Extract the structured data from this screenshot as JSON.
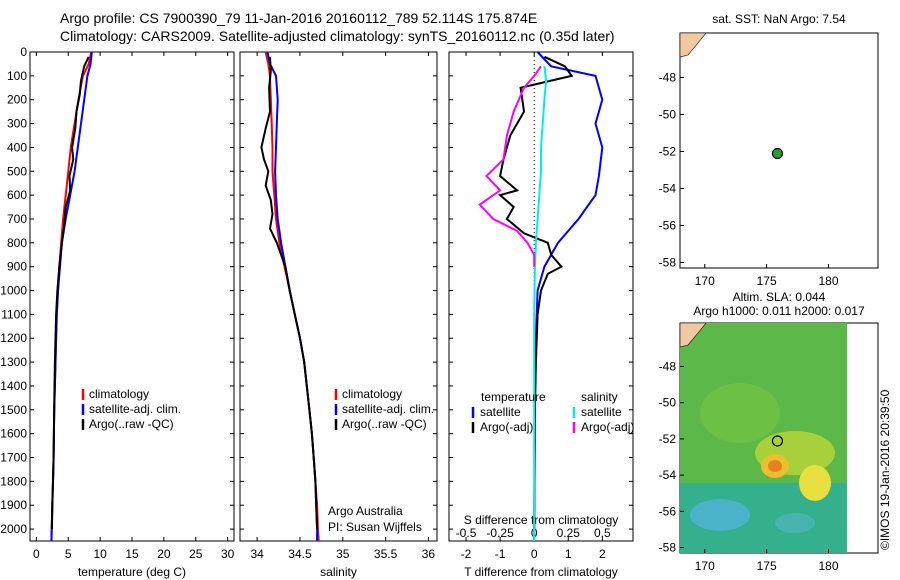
{
  "titles": {
    "line1": "Argo profile: CS 7900390_79 11-Jan-2016 20160112_789 52.114S 175.874E",
    "line2": "Climatology: CARS2009. Satellite-adjusted climatology: synTS_20160112.nc (0.35d later)"
  },
  "side_text": "©IMOS 19-Jan-2016 20:39:50",
  "chart_data": [
    {
      "type": "line",
      "panel": "temperature",
      "xlabel": "temperature (deg C)",
      "xlim": [
        -1,
        31
      ],
      "xticks": [
        0,
        5,
        10,
        15,
        20,
        25,
        30
      ],
      "ylim": [
        2050,
        0
      ],
      "yticks": [
        0,
        100,
        200,
        300,
        400,
        500,
        600,
        700,
        800,
        900,
        1000,
        1100,
        1200,
        1300,
        1400,
        1500,
        1600,
        1700,
        1800,
        1900,
        2000
      ],
      "legend": [
        "climatology",
        "satellite-adj. clim.",
        "Argo(..raw -QC)"
      ],
      "series": [
        {
          "name": "climatology",
          "color": "#ff0000",
          "points": [
            [
              8.6,
              0
            ],
            [
              8.2,
              50
            ],
            [
              7.3,
              100
            ],
            [
              6.6,
              200
            ],
            [
              6.0,
              300
            ],
            [
              5.4,
              400
            ],
            [
              5.0,
              500
            ],
            [
              4.6,
              600
            ],
            [
              4.2,
              700
            ],
            [
              3.9,
              800
            ],
            [
              3.6,
              900
            ],
            [
              3.4,
              1000
            ],
            [
              3.2,
              1100
            ],
            [
              3.1,
              1200
            ],
            [
              3.0,
              1300
            ],
            [
              2.9,
              1400
            ],
            [
              2.8,
              1500
            ],
            [
              2.75,
              1600
            ],
            [
              2.7,
              1700
            ],
            [
              2.6,
              1800
            ],
            [
              2.5,
              1900
            ],
            [
              2.4,
              2000
            ],
            [
              2.35,
              2050
            ]
          ]
        },
        {
          "name": "satellite-adj. clim.",
          "color": "#0000ff",
          "points": [
            [
              8.7,
              0
            ],
            [
              8.5,
              50
            ],
            [
              8.0,
              100
            ],
            [
              7.5,
              200
            ],
            [
              7.0,
              300
            ],
            [
              6.5,
              400
            ],
            [
              6.0,
              500
            ],
            [
              5.3,
              600
            ],
            [
              4.6,
              700
            ],
            [
              4.0,
              800
            ],
            [
              3.7,
              900
            ],
            [
              3.4,
              1000
            ],
            [
              3.2,
              1100
            ],
            [
              3.1,
              1200
            ],
            [
              3.0,
              1300
            ],
            [
              2.9,
              1400
            ],
            [
              2.8,
              1500
            ],
            [
              2.75,
              1600
            ],
            [
              2.7,
              1700
            ],
            [
              2.6,
              1800
            ],
            [
              2.5,
              1900
            ],
            [
              2.4,
              2000
            ],
            [
              2.35,
              2050
            ]
          ]
        },
        {
          "name": "Argo(..raw -QC)",
          "color": "#000000",
          "points": [
            [
              8.2,
              20
            ],
            [
              7.5,
              60
            ],
            [
              7.0,
              120
            ],
            [
              6.8,
              180
            ],
            [
              6.3,
              250
            ],
            [
              6.1,
              320
            ],
            [
              5.6,
              400
            ],
            [
              5.8,
              450
            ],
            [
              5.2,
              520
            ],
            [
              5.3,
              580
            ],
            [
              4.6,
              650
            ],
            [
              4.4,
              720
            ],
            [
              4.0,
              800
            ],
            [
              3.6,
              900
            ],
            [
              3.3,
              1000
            ],
            [
              3.1,
              1100
            ],
            [
              3.0,
              1200
            ],
            [
              2.9,
              1300
            ],
            [
              2.85,
              1400
            ],
            [
              2.8,
              1500
            ],
            [
              2.75,
              1600
            ],
            [
              2.7,
              1700
            ],
            [
              2.6,
              1800
            ],
            [
              2.5,
              1900
            ],
            [
              2.45,
              2000
            ]
          ]
        }
      ]
    },
    {
      "type": "line",
      "panel": "salinity",
      "xlabel": "salinity",
      "xlim": [
        33.8,
        36.1
      ],
      "xticks": [
        34,
        34.5,
        35,
        35.5,
        36
      ],
      "ylim": [
        2050,
        0
      ],
      "legend": [
        "climatology",
        "satellite-adj. clim.",
        "Argo(..raw -QC)"
      ],
      "annotation": [
        "Argo Australia",
        "PI: Susan Wijffels"
      ],
      "series": [
        {
          "name": "climatology",
          "color": "#ff0000",
          "points": [
            [
              34.1,
              0
            ],
            [
              34.13,
              50
            ],
            [
              34.15,
              100
            ],
            [
              34.16,
              200
            ],
            [
              34.17,
              300
            ],
            [
              34.18,
              400
            ],
            [
              34.18,
              500
            ],
            [
              34.2,
              600
            ],
            [
              34.22,
              700
            ],
            [
              34.26,
              800
            ],
            [
              34.32,
              900
            ],
            [
              34.38,
              1000
            ],
            [
              34.44,
              1100
            ],
            [
              34.5,
              1200
            ],
            [
              34.55,
              1300
            ],
            [
              34.58,
              1400
            ],
            [
              34.61,
              1500
            ],
            [
              34.64,
              1600
            ],
            [
              34.66,
              1700
            ],
            [
              34.68,
              1800
            ],
            [
              34.7,
              1900
            ],
            [
              34.71,
              2000
            ],
            [
              34.72,
              2050
            ]
          ]
        },
        {
          "name": "satellite-adj. clim.",
          "color": "#0000ff",
          "points": [
            [
              34.12,
              0
            ],
            [
              34.15,
              50
            ],
            [
              34.22,
              100
            ],
            [
              34.24,
              200
            ],
            [
              34.23,
              300
            ],
            [
              34.22,
              400
            ],
            [
              34.21,
              500
            ],
            [
              34.22,
              600
            ],
            [
              34.24,
              700
            ],
            [
              34.28,
              800
            ],
            [
              34.33,
              900
            ],
            [
              34.38,
              1000
            ],
            [
              34.44,
              1100
            ],
            [
              34.5,
              1200
            ],
            [
              34.55,
              1300
            ],
            [
              34.58,
              1400
            ],
            [
              34.61,
              1500
            ],
            [
              34.64,
              1600
            ],
            [
              34.66,
              1700
            ],
            [
              34.68,
              1800
            ],
            [
              34.69,
              1900
            ],
            [
              34.7,
              2000
            ],
            [
              34.7,
              2050
            ]
          ]
        },
        {
          "name": "Argo(..raw -QC)",
          "color": "#000000",
          "points": [
            [
              34.15,
              20
            ],
            [
              34.16,
              80
            ],
            [
              34.14,
              150
            ],
            [
              34.15,
              250
            ],
            [
              34.1,
              320
            ],
            [
              34.05,
              400
            ],
            [
              34.08,
              450
            ],
            [
              34.13,
              500
            ],
            [
              34.1,
              560
            ],
            [
              34.16,
              620
            ],
            [
              34.18,
              680
            ],
            [
              34.15,
              740
            ],
            [
              34.23,
              800
            ],
            [
              34.3,
              870
            ],
            [
              34.33,
              900
            ],
            [
              34.38,
              1000
            ],
            [
              34.44,
              1100
            ],
            [
              34.5,
              1200
            ],
            [
              34.55,
              1300
            ],
            [
              34.58,
              1400
            ],
            [
              34.61,
              1500
            ],
            [
              34.64,
              1600
            ],
            [
              34.66,
              1700
            ],
            [
              34.68,
              1800
            ],
            [
              34.69,
              1900
            ],
            [
              34.7,
              2000
            ]
          ]
        }
      ]
    },
    {
      "type": "line",
      "panel": "difference",
      "xlabel": "T difference from climatology",
      "xlabel_top": "S difference from climatology",
      "xlim": [
        -2.5,
        2.9
      ],
      "xticks": [
        -2,
        -1,
        0,
        1,
        2
      ],
      "s_ticks": [
        -0.5,
        -0.25,
        0,
        0.25,
        0.5
      ],
      "s_tick_labels": [
        "-0.5",
        "-0.25",
        "0",
        "0.25",
        "0.5"
      ],
      "ylim": [
        2050,
        0
      ],
      "legend_headers": [
        "temperature",
        "salinity"
      ],
      "legend": [
        "satellite",
        "Argo(-adj)",
        "satellite",
        "Argo(-adj)"
      ],
      "series": [
        {
          "name": "satellite",
          "group": "temperature",
          "color": "#0000ff",
          "points": [
            [
              0.1,
              0
            ],
            [
              0.5,
              60
            ],
            [
              1.8,
              100
            ],
            [
              2.0,
              200
            ],
            [
              1.8,
              300
            ],
            [
              2.0,
              400
            ],
            [
              1.9,
              520
            ],
            [
              1.8,
              600
            ],
            [
              1.3,
              700
            ],
            [
              0.7,
              800
            ],
            [
              0.3,
              900
            ],
            [
              0.1,
              1000
            ],
            [
              0.05,
              1200
            ],
            [
              0.02,
              1500
            ],
            [
              0.0,
              2050
            ]
          ]
        },
        {
          "name": "Argo(-adj)",
          "group": "temperature",
          "color": "#000000",
          "points": [
            [
              0.3,
              20
            ],
            [
              0.9,
              60
            ],
            [
              1.1,
              100
            ],
            [
              0.5,
              120
            ],
            [
              -0.4,
              150
            ],
            [
              -0.3,
              250
            ],
            [
              -0.7,
              350
            ],
            [
              -0.9,
              450
            ],
            [
              -1.0,
              520
            ],
            [
              -0.5,
              580
            ],
            [
              -1.0,
              600
            ],
            [
              -0.6,
              650
            ],
            [
              -0.8,
              700
            ],
            [
              -0.3,
              760
            ],
            [
              0.4,
              800
            ],
            [
              0.5,
              850
            ],
            [
              0.8,
              900
            ],
            [
              0.4,
              930
            ],
            [
              0.2,
              1000
            ],
            [
              0.1,
              1100
            ],
            [
              0.05,
              1300
            ],
            [
              0.02,
              1500
            ],
            [
              0.0,
              2000
            ]
          ]
        },
        {
          "name": "satellite",
          "group": "salinity",
          "color": "#00eeee",
          "points": [
            [
              0.3,
              60
            ],
            [
              0.35,
              120
            ],
            [
              0.3,
              200
            ],
            [
              0.25,
              300
            ],
            [
              0.2,
              400
            ],
            [
              0.2,
              500
            ],
            [
              0.15,
              600
            ],
            [
              0.1,
              700
            ],
            [
              0.05,
              800
            ],
            [
              0.02,
              900
            ],
            [
              0.0,
              1100
            ],
            [
              0.0,
              2050
            ]
          ]
        },
        {
          "name": "Argo(-adj)",
          "group": "salinity",
          "color": "#ff00ff",
          "points": [
            [
              0.2,
              60
            ],
            [
              0.0,
              100
            ],
            [
              -0.3,
              150
            ],
            [
              -0.6,
              250
            ],
            [
              -0.8,
              350
            ],
            [
              -0.9,
              450
            ],
            [
              -1.4,
              520
            ],
            [
              -1.0,
              580
            ],
            [
              -1.6,
              640
            ],
            [
              -1.2,
              700
            ],
            [
              -0.5,
              750
            ],
            [
              -0.2,
              800
            ],
            [
              0.0,
              850
            ],
            [
              0.0,
              900
            ]
          ]
        }
      ]
    },
    {
      "type": "scatter",
      "panel": "sst-map",
      "title": "sat. SST: NaN Argo: 7.54",
      "xlim": [
        168,
        184
      ],
      "ylim": [
        -58.3,
        -45.6
      ],
      "xticks": [
        170,
        175,
        180
      ],
      "yticks": [
        -48,
        -50,
        -52,
        -54,
        -56,
        -58
      ],
      "points": [
        {
          "x": 175.874,
          "y": -52.114
        }
      ]
    },
    {
      "type": "heatmap",
      "panel": "sla-map",
      "title_lines": [
        "Altim. SLA: 0.044",
        "Argo h1000: 0.011 h2000: 0.017"
      ],
      "xlim": [
        168,
        184
      ],
      "ylim": [
        -58.3,
        -45.6
      ],
      "xticks": [
        170,
        175,
        180
      ],
      "yticks": [
        -48,
        -50,
        -52,
        -54,
        -56,
        -58
      ],
      "points": [
        {
          "x": 175.874,
          "y": -52.114
        }
      ]
    }
  ]
}
